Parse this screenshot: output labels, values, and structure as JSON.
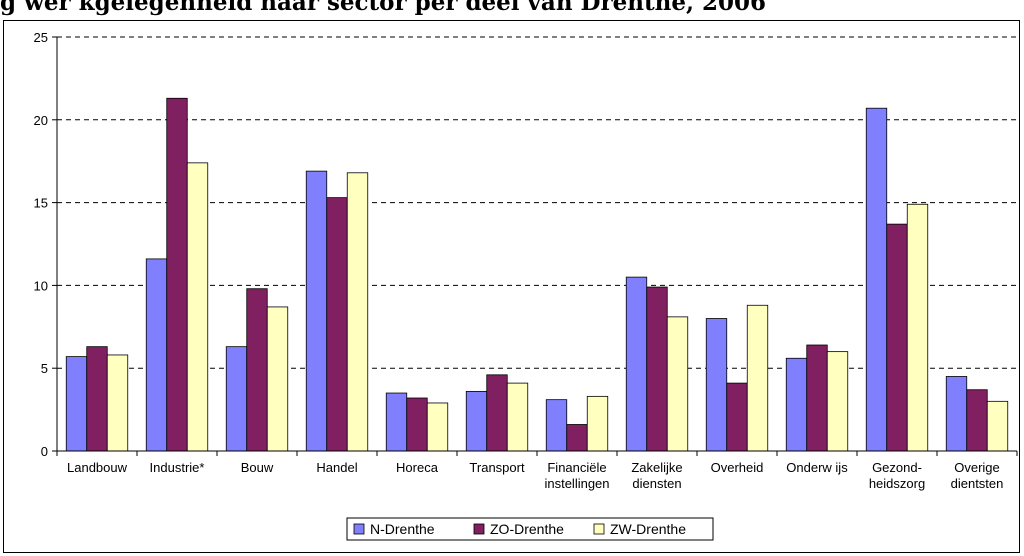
{
  "title": "g wer kgelegenheid naar sector per deel van Drenthe, 2006",
  "colors": {
    "N-Drenthe": "#8080ff",
    "ZO-Drenthe": "#802060",
    "ZW-Drenthe": "#ffffc0",
    "grid": "#000000",
    "bar_border": "#000000"
  },
  "chart_data": {
    "type": "bar",
    "title": "g wer kgelegenheid naar sector per deel van Drenthe, 2006",
    "xlabel": "",
    "ylabel": "",
    "ylim": [
      0,
      25
    ],
    "yticks": [
      0,
      5,
      10,
      15,
      20,
      25
    ],
    "grid": "horizontal dashed",
    "legend_position": "bottom",
    "categories": [
      [
        "Landbouw"
      ],
      [
        "Industrie*"
      ],
      [
        "Bouw"
      ],
      [
        "Handel"
      ],
      [
        "Horeca"
      ],
      [
        "Transport"
      ],
      [
        "Financiële",
        "instellingen"
      ],
      [
        "Zakelijke",
        "diensten"
      ],
      [
        "Overheid"
      ],
      [
        "Onderw ijs"
      ],
      [
        "Gezond-",
        "heidszorg"
      ],
      [
        "Overige",
        "dientsten"
      ]
    ],
    "series": [
      {
        "name": "N-Drenthe",
        "values": [
          5.7,
          11.6,
          6.3,
          16.9,
          3.5,
          3.6,
          3.1,
          10.5,
          8.0,
          5.6,
          20.7,
          4.5
        ]
      },
      {
        "name": "ZO-Drenthe",
        "values": [
          6.3,
          21.3,
          9.8,
          15.3,
          3.2,
          4.6,
          1.6,
          9.9,
          4.1,
          6.4,
          13.7,
          3.7
        ]
      },
      {
        "name": "ZW-Drenthe",
        "values": [
          5.8,
          17.4,
          8.7,
          16.8,
          2.9,
          4.1,
          3.3,
          8.1,
          8.8,
          6.0,
          14.9,
          3.0
        ]
      }
    ]
  }
}
